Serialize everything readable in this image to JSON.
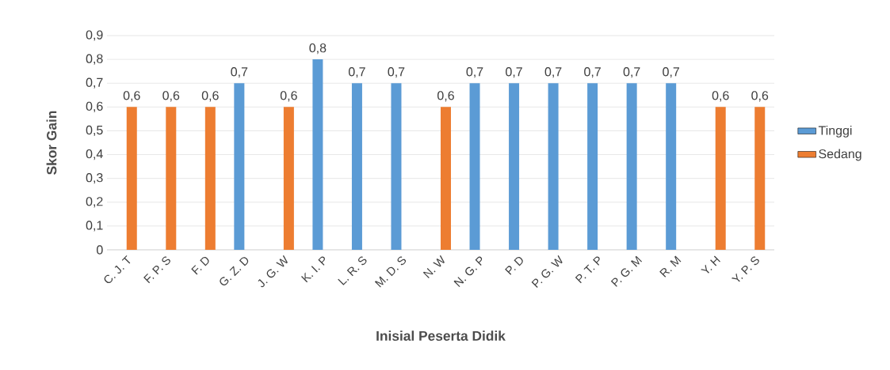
{
  "chart_data": {
    "type": "bar",
    "xlabel": "Inisial Peserta Didik",
    "ylabel": "Skor Gain",
    "categories": [
      "C. J. T",
      "F. P. S",
      "F. D",
      "G. Z. D",
      "J. G. W",
      "K. I. P",
      "L. R. S",
      "M. D. S",
      "N. W",
      "N. G. P",
      "P. D",
      "P. G. W",
      "P. T. P",
      "P. G. M",
      "R. M",
      "Y. H",
      "Y. P. S"
    ],
    "series": [
      {
        "name": "Tinggi",
        "color": "#5b9bd5",
        "values": [
          null,
          null,
          null,
          0.7,
          null,
          0.8,
          0.7,
          0.7,
          null,
          0.7,
          0.7,
          0.7,
          0.7,
          0.7,
          0.7,
          null,
          null
        ],
        "value_labels": [
          null,
          null,
          null,
          "0,7",
          null,
          "0,8",
          "0,7",
          "0,7",
          null,
          "0,7",
          "0,7",
          "0,7",
          "0,7",
          "0,7",
          "0,7",
          null,
          null
        ]
      },
      {
        "name": "Sedang",
        "color": "#ed7d31",
        "values": [
          0.6,
          0.6,
          0.6,
          null,
          0.6,
          null,
          null,
          null,
          0.6,
          null,
          null,
          null,
          null,
          null,
          null,
          0.6,
          0.6
        ],
        "value_labels": [
          "0,6",
          "0,6",
          "0,6",
          null,
          "0,6",
          null,
          null,
          null,
          "0,6",
          null,
          null,
          null,
          null,
          null,
          null,
          "0,6",
          "0,6"
        ]
      }
    ],
    "ylim": [
      0,
      0.9
    ],
    "yticks": [
      0,
      {
        "value": 0.1,
        "label": "0,1"
      },
      {
        "value": 0.2,
        "label": "0,2"
      },
      {
        "value": 0.3,
        "label": "0,3"
      },
      {
        "value": 0.4,
        "label": "0,4"
      },
      {
        "value": 0.5,
        "label": "0,5"
      },
      {
        "value": 0.6,
        "label": "0,6"
      },
      {
        "value": 0.7,
        "label": "0,7"
      },
      {
        "value": 0.8,
        "label": "0,8"
      },
      {
        "value": 0.9,
        "label": "0,9"
      }
    ],
    "grid": "y",
    "legend": "right"
  }
}
